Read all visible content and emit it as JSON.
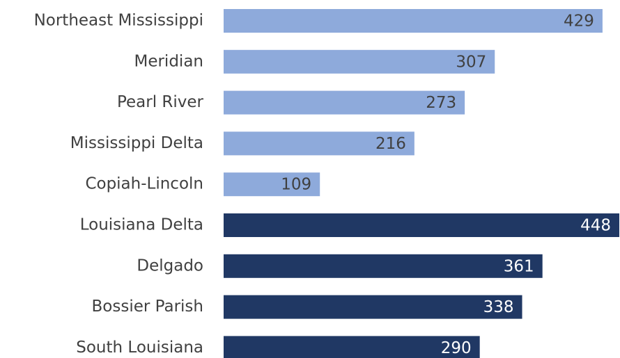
{
  "chart_data": {
    "type": "bar",
    "orientation": "horizontal",
    "categories": [
      "Northeast Mississippi",
      "Meridian",
      "Pearl River",
      "Mississippi Delta",
      "Copiah-Lincoln",
      "Louisiana Delta",
      "Delgado",
      "Bossier Parish",
      "South Louisiana"
    ],
    "values": [
      429,
      307,
      273,
      216,
      109,
      448,
      361,
      338,
      290
    ],
    "colors": [
      "#8eaadb",
      "#8eaadb",
      "#8eaadb",
      "#8eaadb",
      "#8eaadb",
      "#203864",
      "#203864",
      "#203864",
      "#203864"
    ],
    "label_colors": [
      "#404040",
      "#404040",
      "#404040",
      "#404040",
      "#404040",
      "#ffffff",
      "#ffffff",
      "#ffffff",
      "#ffffff"
    ]
  }
}
